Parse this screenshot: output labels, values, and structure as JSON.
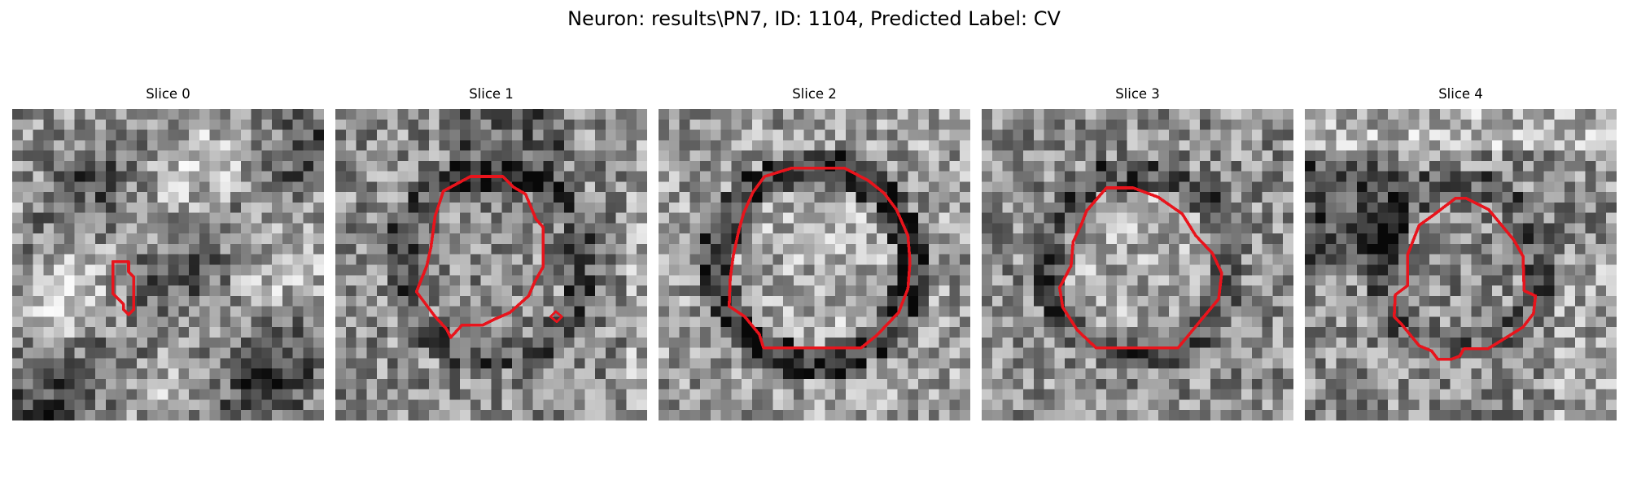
{
  "figure": {
    "title": "Neuron: results\\PN7, ID: 1104, Predicted Label: CV"
  },
  "panels": [
    {
      "title": "Slice 0",
      "pattern": "rings-faint",
      "seed": 11
    },
    {
      "title": "Slice 1",
      "pattern": "ring-dark-top",
      "seed": 23
    },
    {
      "title": "Slice 2",
      "pattern": "ring-strong",
      "seed": 37
    },
    {
      "title": "Slice 3",
      "pattern": "ring-medium",
      "seed": 51
    },
    {
      "title": "Slice 4",
      "pattern": "ring-dark-left",
      "seed": 67
    }
  ],
  "overlay_color": "#e8141c",
  "image_style": "grayscale pixel grid with red contour overlay"
}
